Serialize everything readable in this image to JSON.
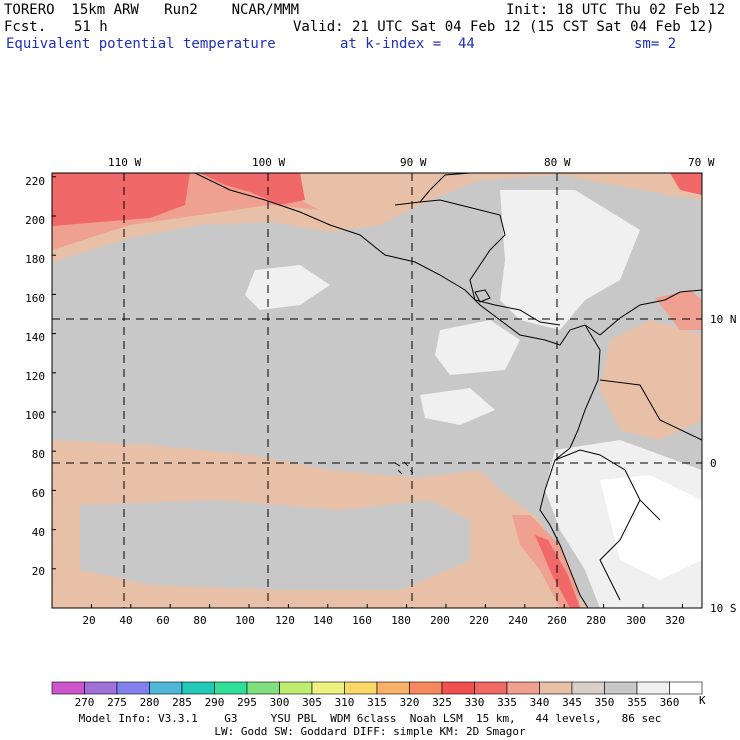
{
  "header": {
    "model": "TORERO  15km ARW   Run2    NCAR/MMM",
    "init": "Init: 18 UTC Thu 02 Feb 12",
    "fcst_label": "Fcst.",
    "fcst_hours": "51 h",
    "valid": "Valid: 21 UTC Sat 04 Feb 12 (15 CST Sat 04 Feb 12)",
    "field": "Equivalent potential temperature",
    "level": "at k-index =  44",
    "smoothing": "sm= 2"
  },
  "map": {
    "top_lon_labels": [
      "110 W",
      "100 W",
      "90 W",
      "80 W",
      "70 W"
    ],
    "right_lat_labels": [
      "10 N",
      "0",
      "10 S"
    ],
    "left_grid_labels": [
      "220",
      "200",
      "180",
      "160",
      "140",
      "120",
      "100",
      "80",
      "60",
      "40",
      "20"
    ],
    "bottom_grid_labels": [
      "20",
      "40",
      "60",
      "80",
      "100",
      "120",
      "140",
      "160",
      "180",
      "200",
      "220",
      "240",
      "260",
      "280",
      "300",
      "320"
    ]
  },
  "colorbar": {
    "labels": [
      "270",
      "275",
      "280",
      "285",
      "290",
      "295",
      "300",
      "305",
      "310",
      "315",
      "320",
      "325",
      "330",
      "335",
      "340",
      "345",
      "350",
      "355",
      "360"
    ],
    "unit": "K",
    "colors": [
      "#cc55cc",
      "#a070d8",
      "#8080ee",
      "#4fb8d8",
      "#22c8b8",
      "#30e098",
      "#80e080",
      "#c0ec70",
      "#f0f080",
      "#f8d868",
      "#f8b068",
      "#f88860",
      "#f05050",
      "#f06868",
      "#f0a090",
      "#e8c0a8",
      "#d8d0c8",
      "#c8c8c8",
      "#f0f0f0",
      "#ffffff"
    ]
  },
  "footer": {
    "line1": "Model Info: V3.3.1    G3     YSU PBL  WDM 6class  Noah LSM  15 km,   44 levels,   86 sec",
    "line2": "LW: Godd SW: Goddard DIFF: simple KM: 2D Smagor"
  }
}
